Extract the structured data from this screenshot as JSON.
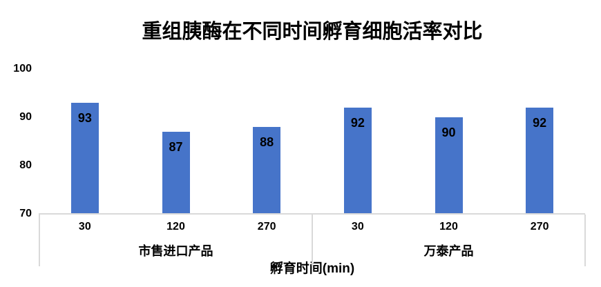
{
  "title": "重组胰酶在不同时间孵育细胞活率对比",
  "colors": {
    "bar": "#4674C9",
    "frame": "#D9D9D9",
    "text": "#000000",
    "background": "#FFFFFF"
  },
  "chart_data": {
    "type": "bar",
    "title": "重组胰酶在不同时间孵育细胞活率对比",
    "xlabel": "孵育时间(min)",
    "ylabel": "",
    "ylim": [
      70,
      100
    ],
    "yticks": [
      100,
      90,
      80,
      70
    ],
    "grid": false,
    "legend": false,
    "data_labels": "inside-end",
    "bar_color": "#4674C9",
    "groups": [
      {
        "label": "市售进口产品",
        "categories": [
          "30",
          "120",
          "270"
        ],
        "values": [
          93,
          87,
          88
        ]
      },
      {
        "label": "万泰产品",
        "categories": [
          "30",
          "120",
          "270"
        ],
        "values": [
          92,
          90,
          92
        ]
      }
    ]
  }
}
